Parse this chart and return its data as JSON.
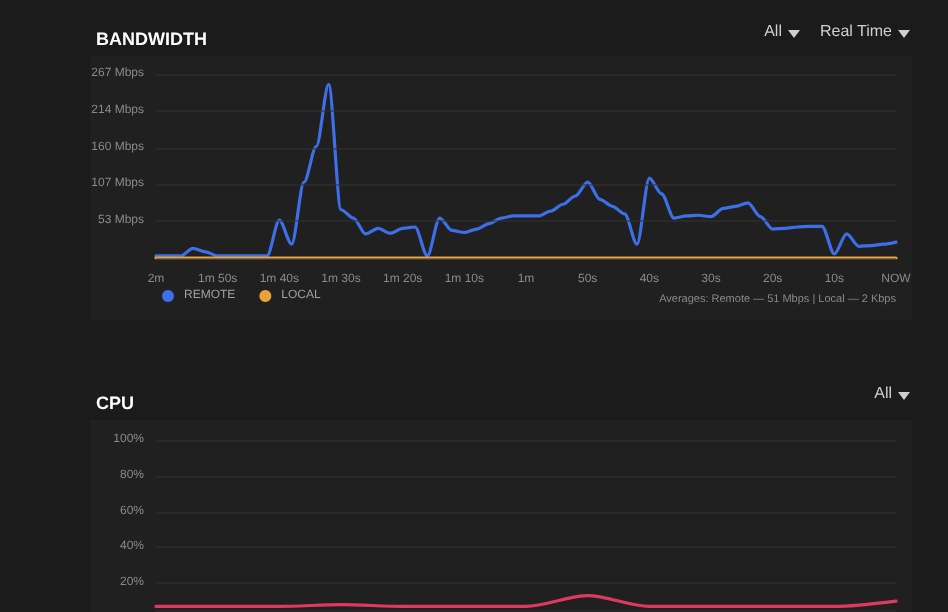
{
  "chart_data": [
    {
      "type": "line",
      "title": "BANDWIDTH",
      "annotations": [
        "All",
        "Real Time",
        "Averages: Remote — 51 Mbps | Local — 2 Kbps"
      ],
      "categories": [
        "2m",
        null,
        null,
        null,
        null,
        "1m 50s",
        null,
        null,
        null,
        null,
        "1m 40s",
        null,
        null,
        null,
        null,
        "1m 30s",
        null,
        null,
        null,
        null,
        "1m 20s",
        null,
        null,
        null,
        null,
        "1m 10s",
        null,
        null,
        null,
        null,
        "1m",
        null,
        null,
        null,
        null,
        "50s",
        null,
        null,
        null,
        null,
        "40s",
        null,
        null,
        null,
        null,
        "30s",
        null,
        null,
        null,
        null,
        "20s",
        null,
        null,
        null,
        null,
        "10s",
        null,
        null,
        null,
        null,
        "NOW"
      ],
      "series": [
        {
          "name": "REMOTE",
          "color": "#3d6fe8",
          "values": [
            3,
            3,
            3,
            14,
            9,
            3,
            3,
            3,
            3,
            3,
            55,
            20,
            110,
            162,
            252,
            70,
            58,
            35,
            43,
            36,
            43,
            45,
            3,
            58,
            40,
            37,
            42,
            50,
            58,
            61,
            61,
            61,
            68,
            78,
            90,
            110,
            85,
            75,
            64,
            20,
            116,
            93,
            58,
            61,
            62,
            60,
            72,
            75,
            80,
            60,
            42,
            43,
            45,
            46,
            46,
            6,
            35,
            17,
            18,
            20,
            23
          ]
        },
        {
          "name": "LOCAL",
          "color": "#e8a23a",
          "values": [
            0,
            0,
            0,
            0,
            0,
            0,
            0,
            0,
            0,
            0,
            0,
            0,
            0,
            0,
            0,
            0,
            0,
            0,
            0,
            0,
            0,
            0,
            0,
            0,
            0,
            0,
            0,
            0,
            0,
            0,
            0,
            0,
            0,
            0,
            0,
            0,
            0,
            0,
            0,
            0,
            0,
            0,
            0,
            0,
            0,
            0,
            0,
            0,
            0,
            0,
            0,
            0,
            0,
            0,
            0,
            0,
            0,
            0,
            0,
            0,
            0
          ]
        }
      ],
      "ylim": [
        0,
        267
      ],
      "yticks": [
        {
          "value": 0,
          "label": null
        },
        {
          "value": 53.4,
          "label": "53 Mbps"
        },
        {
          "value": 106.8,
          "label": "107 Mbps"
        },
        {
          "value": 160.2,
          "label": "160 Mbps"
        },
        {
          "value": 213.6,
          "label": "214 Mbps"
        },
        {
          "value": 267,
          "label": "267 Mbps"
        }
      ],
      "grid": "y",
      "legend": "bottom left",
      "marker": "none",
      "line_style": "solid"
    },
    {
      "type": "line",
      "title": "CPU",
      "annotations": [
        "All"
      ],
      "categories": [
        null,
        null,
        null,
        null,
        null,
        null,
        null,
        null,
        null,
        null,
        null,
        null,
        null
      ],
      "series": [
        {
          "color": "#e0395f",
          "values": [
            7,
            7,
            7,
            8,
            7,
            7,
            7,
            13,
            7,
            7,
            7,
            7,
            10
          ]
        }
      ],
      "ylim": [
        5,
        100
      ],
      "yticks": [
        {
          "value": 20,
          "label": "20%"
        },
        {
          "value": 40,
          "label": "40%"
        },
        {
          "value": 60,
          "label": "60%"
        },
        {
          "value": 80,
          "label": "80%"
        },
        {
          "value": 100,
          "label": "100%"
        }
      ],
      "grid": "y",
      "tick_labels": "y",
      "marker": "none",
      "line_style": "solid"
    }
  ]
}
